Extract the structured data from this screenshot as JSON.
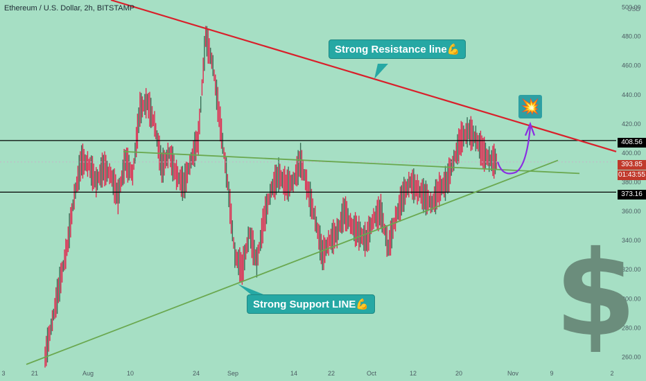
{
  "title": "Ethereum / U.S. Dollar, 2h, BITSTAMP",
  "currency_label": "USD",
  "colors": {
    "background": "#a6dfc4",
    "candle_up": "#3a6e57",
    "candle_down": "#e0294f",
    "resistance_line": "#d91f2a",
    "support_line": "#6aa84f",
    "horizontal_line": "#000000",
    "arrow": "#8a2be2",
    "callout_bg": "#26a8a4"
  },
  "annotations": {
    "resistance_label": "Strong Resistance line💪",
    "support_label": "Strong Support LINE💪",
    "dollar_sign": "$",
    "boom_icon": "💥"
  },
  "price_tags": [
    {
      "value": "408.56",
      "bg": "#000000"
    },
    {
      "value": "393.85",
      "bg": "#c0392b"
    },
    {
      "value": "01:43:55",
      "bg": "#c0392b"
    },
    {
      "value": "373.16",
      "bg": "#000000"
    }
  ],
  "chart_data": {
    "type": "line",
    "title": "Ethereum / U.S. Dollar, 2h, BITSTAMP",
    "ylabel": "USD",
    "ylim": [
      255,
      505
    ],
    "y_ticks": [
      260,
      280,
      300,
      320,
      340,
      360,
      380,
      400,
      420,
      440,
      460,
      480,
      500
    ],
    "x_ticks": [
      "3",
      "21",
      "Aug",
      "10",
      "24",
      "Sep",
      "14",
      "22",
      "Oct",
      "12",
      "20",
      "Nov",
      "9",
      "2"
    ],
    "series": [
      {
        "values": [
          260,
          285,
          310,
          335,
          370,
          395,
          392,
          380,
          390,
          385,
          370,
          395,
          385,
          430,
          435,
          420,
          390,
          400,
          385,
          378,
          395,
          410,
          480,
          460,
          420,
          380,
          330,
          320,
          345,
          325,
          355,
          375,
          385,
          378,
          380,
          395,
          375,
          355,
          330,
          340,
          345,
          360,
          350,
          345,
          340,
          355,
          360,
          335,
          355,
          370,
          380,
          375,
          370,
          365,
          375,
          380,
          395,
          410,
          415,
          410,
          400,
          395,
          393.85
        ]
      }
    ],
    "horizontal_lines": [
      408.56,
      373.16
    ]
  }
}
